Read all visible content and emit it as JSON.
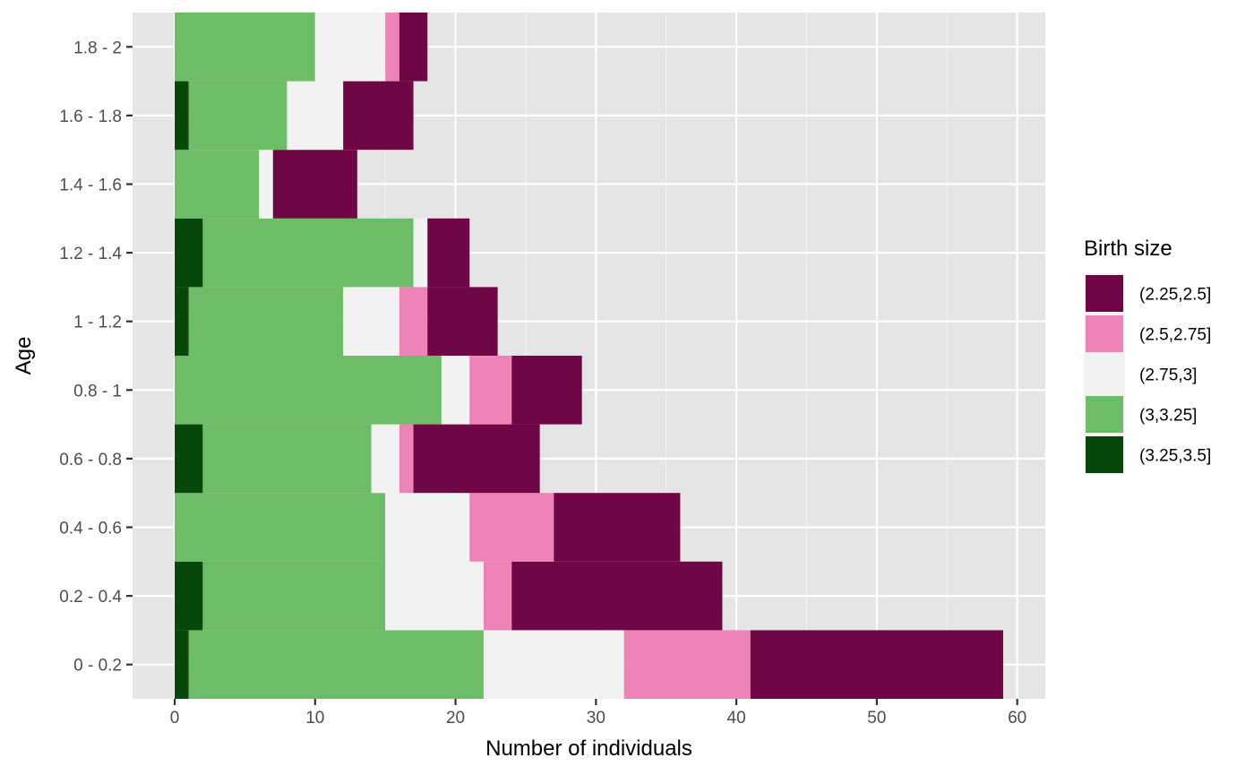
{
  "chart_data": {
    "type": "bar",
    "orientation": "horizontal",
    "stacked": true,
    "categories": [
      "0 - 0.2",
      "0.2 - 0.4",
      "0.4 - 0.6",
      "0.6 - 0.8",
      "0.8 - 1",
      "1 - 1.2",
      "1.2 - 1.4",
      "1.4 - 1.6",
      "1.6 - 1.8",
      "1.8 - 2"
    ],
    "series": [
      {
        "name": "(3.25,3.5]",
        "color": "#08470a",
        "values": [
          1,
          2,
          0,
          2,
          0,
          1,
          2,
          0,
          1,
          0
        ]
      },
      {
        "name": "(3,3.25]",
        "color": "#6dbd68",
        "values": [
          21,
          13,
          15,
          12,
          19,
          11,
          15,
          6,
          7,
          10
        ]
      },
      {
        "name": "(2.75,3]",
        "color": "#f2f2f2",
        "values": [
          10,
          7,
          6,
          2,
          2,
          4,
          1,
          1,
          4,
          5
        ]
      },
      {
        "name": "(2.5,2.75]",
        "color": "#ee83b8",
        "values": [
          9,
          2,
          6,
          1,
          3,
          2,
          0,
          0,
          0,
          1
        ]
      },
      {
        "name": "(2.25,2.5]",
        "color": "#6f0646",
        "values": [
          18,
          15,
          9,
          9,
          5,
          5,
          3,
          6,
          5,
          2
        ]
      }
    ],
    "xlabel": "Number of individuals",
    "ylabel": "Age",
    "xlim": [
      -3,
      62
    ],
    "xticks": [
      0,
      10,
      20,
      30,
      40,
      50,
      60
    ],
    "grid": true,
    "legend": {
      "title": "Birth size",
      "position": "right",
      "order": [
        "(2.25,2.5]",
        "(2.5,2.75]",
        "(2.75,3]",
        "(3,3.25]",
        "(3.25,3.5]"
      ]
    }
  }
}
